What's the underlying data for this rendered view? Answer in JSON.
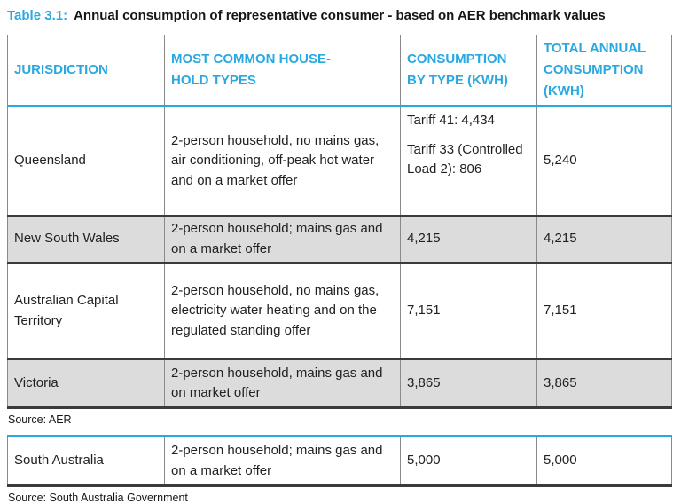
{
  "caption": {
    "label": "Table 3.1:",
    "text": "Annual consumption of representative consumer - based on AER benchmark values"
  },
  "colors": {
    "accent_cyan": "#29A8E1",
    "row_shade": "#DCDCDC",
    "border_gray": "#8A8A8A",
    "border_dark": "#3B3B3B",
    "text_dark": "#1F1F1F"
  },
  "table_aer": {
    "headers": [
      "JURISDICTION",
      "MOST COMMON HOUSE-\nHOLD TYPES",
      "CONSUMPTION\nBY TYPE (KWH)",
      "TOTAL ANNUAL\nCONSUMPTION\n(KWH)"
    ],
    "rows": [
      {
        "jurisdiction": "Queensland",
        "household": "2-person household, no mains gas, air conditioning, off-peak hot water and on a market offer",
        "consumption_lines": [
          "Tariff 41: 4,434",
          "Tariff 33 (Controlled Load 2): 806"
        ],
        "total": "5,240"
      },
      {
        "jurisdiction": "New South Wales",
        "household": "2-person household; mains gas and on a market offer",
        "consumption": "4,215",
        "total": "4,215"
      },
      {
        "jurisdiction": "Australian Capital Territory",
        "household": "2-person household, no mains gas, electricity water heating and on the regulated standing offer",
        "consumption": "7,151",
        "total": "7,151"
      },
      {
        "jurisdiction": "Victoria",
        "household": "2-person household, mains gas and on market offer",
        "consumption": "3,865",
        "total": "3,865"
      }
    ],
    "source": "Source: AER"
  },
  "table_sa": {
    "rows": [
      {
        "jurisdiction": "South Australia",
        "household": "2-person household; mains gas and on a market offer",
        "consumption": "5,000",
        "total": "5,000"
      }
    ],
    "source": "Source: South Australia Government"
  }
}
